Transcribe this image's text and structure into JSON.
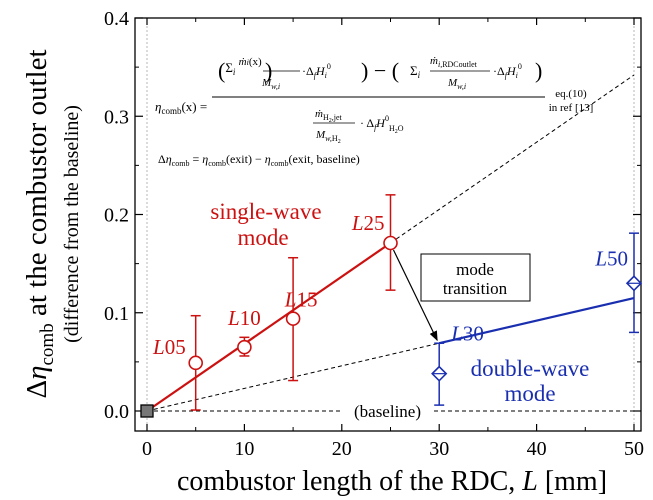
{
  "chart_data": {
    "type": "scatter",
    "xlabel": "combustor length of the RDC, L [mm]",
    "ylabel": {
      "delta": "Δ",
      "eta": "η",
      "sub": "comb",
      "rest": " at the combustor outlet",
      "second_line": "(difference from the baseline)"
    },
    "xlim": [
      0,
      50
    ],
    "ylim": [
      -0.02,
      0.4
    ],
    "xticks": [
      0,
      10,
      20,
      30,
      40,
      50
    ],
    "yticks": [
      0.0,
      0.1,
      0.2,
      0.3,
      0.4
    ],
    "xtick_labels": [
      "0",
      "10",
      "20",
      "30",
      "40",
      "50"
    ],
    "ytick_labels": [
      "0.0",
      "0.1",
      "0.2",
      "0.3",
      "0.4"
    ],
    "colors": {
      "single": "#cc1111",
      "double": "#1a2fb0",
      "baseline": "#444444"
    },
    "baseline_point": {
      "x": 0,
      "y": 0
    },
    "baseline_label": "(baseline)",
    "series": [
      {
        "name": "single-wave mode",
        "marker": "circle",
        "color": "#cc1111",
        "points": [
          {
            "x": 5,
            "y": 0.049,
            "err_lo": 0.001,
            "err_hi": 0.097,
            "label": "L05"
          },
          {
            "x": 10,
            "y": 0.065,
            "err_lo": 0.056,
            "err_hi": 0.075,
            "label": "L10"
          },
          {
            "x": 15,
            "y": 0.094,
            "err_lo": 0.031,
            "err_hi": 0.156,
            "label": "L15"
          },
          {
            "x": 25,
            "y": 0.171,
            "err_lo": 0.123,
            "err_hi": 0.22,
            "label": "L25"
          }
        ],
        "fit": [
          [
            0,
            0
          ],
          [
            25,
            0.171
          ]
        ]
      },
      {
        "name": "double-wave mode",
        "marker": "diamond",
        "color": "#1a2fb0",
        "points": [
          {
            "x": 30,
            "y": 0.038,
            "err_lo": 0.006,
            "err_hi": 0.069,
            "label": "L30"
          },
          {
            "x": 50,
            "y": 0.13,
            "err_lo": 0.08,
            "err_hi": 0.181,
            "label": "L50"
          }
        ],
        "fit": [
          [
            30,
            0.069
          ],
          [
            50,
            0.115
          ]
        ]
      }
    ],
    "dashed_lines": [
      {
        "from": [
          25,
          0.171
        ],
        "to": [
          50,
          0.342
        ]
      },
      {
        "from": [
          0,
          0
        ],
        "to": [
          30,
          0.069
        ]
      },
      {
        "from": [
          0,
          0
        ],
        "to": [
          50,
          0
        ]
      }
    ],
    "mode_labels": {
      "single_line1": "single-wave",
      "single_line2": "mode",
      "double_line1": "double-wave",
      "double_line2": "mode"
    },
    "transition_box": {
      "line1": "mode",
      "line2": "transition"
    },
    "equation": {
      "lhs": "η_comb(x) =",
      "numerator": "(Σ_i ṁ_i(x)/M_w,i · Δ_f H_i^0) − (Σ_i ṁ_i,RDCoutlet/M_w,i · Δ_f H_i^0)",
      "denominator": "ṁ_H2,jet/M_w,H2 · Δ_f H^0_H2O",
      "ref_line1": "eq.(10)",
      "ref_line2": "in ref [13]",
      "second": "Δη_comb = η_comb(exit) − η_comb(exit, baseline)"
    }
  }
}
